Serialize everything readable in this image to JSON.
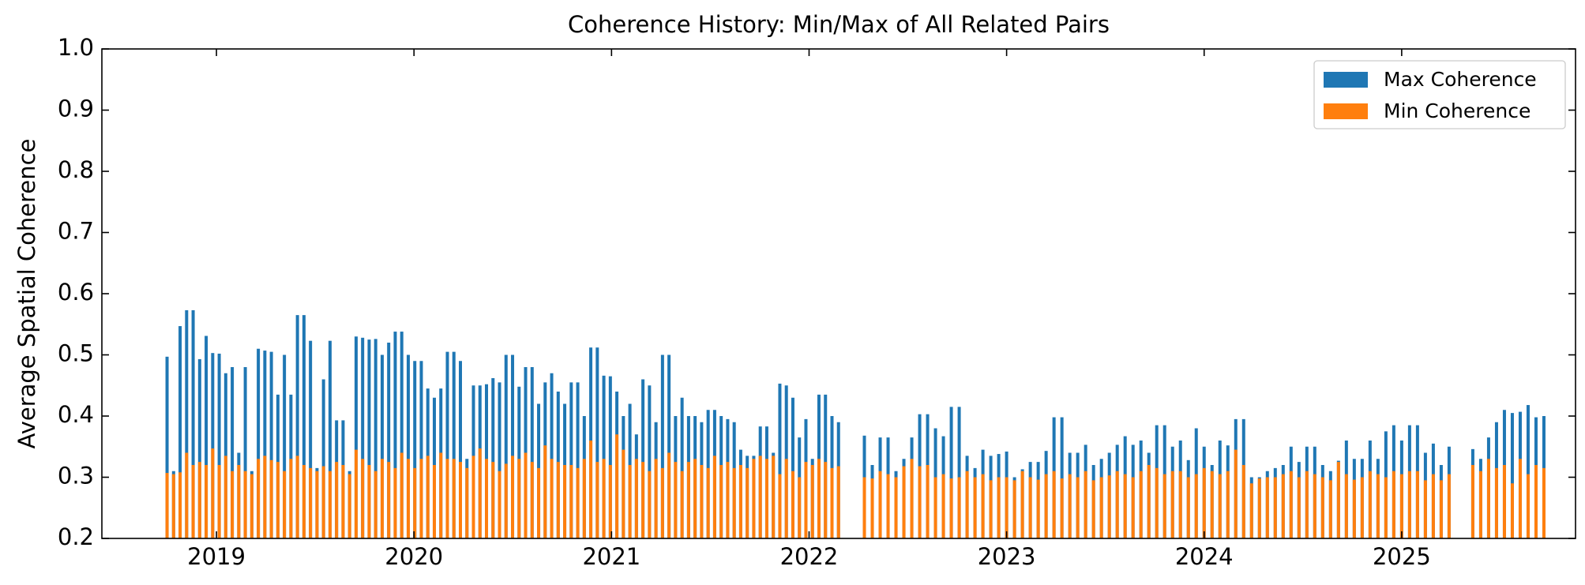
{
  "chart_data": {
    "type": "bar",
    "title": "Coherence History: Min/Max of All Related Pairs",
    "ylabel": "Average Spatial Coherence",
    "xlim": [
      2018.42,
      2025.88
    ],
    "xticks": [
      2019,
      2020,
      2021,
      2022,
      2023,
      2024,
      2025
    ],
    "ylim": [
      0.2,
      1.0
    ],
    "yticks": [
      0.2,
      0.3,
      0.4,
      0.5,
      0.6,
      0.7,
      0.8,
      0.9,
      {
        "value": 1,
        "label": "1.0"
      }
    ],
    "legend": "upper right",
    "x": [
      2018.75,
      2018.783,
      2018.816,
      2018.849,
      2018.882,
      2018.915,
      2018.948,
      2018.981,
      2019.014,
      2019.047,
      2019.08,
      2019.113,
      2019.146,
      2019.179,
      2019.212,
      2019.245,
      2019.278,
      2019.311,
      2019.344,
      2019.377,
      2019.41,
      2019.443,
      2019.476,
      2019.509,
      2019.542,
      2019.575,
      2019.608,
      2019.641,
      2019.674,
      2019.707,
      2019.74,
      2019.773,
      2019.806,
      2019.839,
      2019.872,
      2019.905,
      2019.938,
      2019.971,
      2020.004,
      2020.037,
      2020.07,
      2020.103,
      2020.136,
      2020.169,
      2020.202,
      2020.235,
      2020.268,
      2020.301,
      2020.334,
      2020.367,
      2020.4,
      2020.433,
      2020.466,
      2020.499,
      2020.532,
      2020.565,
      2020.598,
      2020.631,
      2020.664,
      2020.697,
      2020.73,
      2020.763,
      2020.796,
      2020.829,
      2020.862,
      2020.895,
      2020.928,
      2020.961,
      2020.994,
      2021.027,
      2021.06,
      2021.093,
      2021.126,
      2021.159,
      2021.192,
      2021.225,
      2021.258,
      2021.291,
      2021.324,
      2021.357,
      2021.39,
      2021.423,
      2021.456,
      2021.489,
      2021.522,
      2021.555,
      2021.588,
      2021.621,
      2021.654,
      2021.687,
      2021.72,
      2021.753,
      2021.786,
      2021.819,
      2021.852,
      2021.885,
      2021.918,
      2021.951,
      2021.984,
      2022.017,
      2022.05,
      2022.083,
      2022.116,
      2022.149,
      2022.28,
      2022.32,
      2022.36,
      2022.4,
      2022.44,
      2022.48,
      2022.52,
      2022.56,
      2022.6,
      2022.64,
      2022.68,
      2022.72,
      2022.76,
      2022.8,
      2022.84,
      2022.88,
      2022.92,
      2022.96,
      2023.0,
      2023.04,
      2023.08,
      2023.12,
      2023.16,
      2023.2,
      2023.24,
      2023.28,
      2023.32,
      2023.36,
      2023.4,
      2023.44,
      2023.48,
      2023.52,
      2023.56,
      2023.6,
      2023.64,
      2023.68,
      2023.72,
      2023.76,
      2023.8,
      2023.84,
      2023.88,
      2023.92,
      2023.96,
      2024.0,
      2024.04,
      2024.08,
      2024.12,
      2024.16,
      2024.2,
      2024.24,
      2024.28,
      2024.32,
      2024.36,
      2024.4,
      2024.44,
      2024.48,
      2024.52,
      2024.56,
      2024.6,
      2024.64,
      2024.68,
      2024.72,
      2024.76,
      2024.8,
      2024.84,
      2024.88,
      2024.92,
      2024.96,
      2025.0,
      2025.04,
      2025.08,
      2025.12,
      2025.16,
      2025.2,
      2025.24,
      2025.36,
      2025.4,
      2025.44,
      2025.48,
      2025.52,
      2025.56,
      2025.6,
      2025.64,
      2025.68,
      2025.72
    ],
    "series": [
      {
        "name": "Max Coherence",
        "color": "#1f77b4",
        "values": [
          0.497,
          0.31,
          0.547,
          0.573,
          0.573,
          0.493,
          0.531,
          0.503,
          0.502,
          0.47,
          0.48,
          0.34,
          0.48,
          0.31,
          0.51,
          0.507,
          0.505,
          0.435,
          0.5,
          0.435,
          0.565,
          0.565,
          0.523,
          0.315,
          0.46,
          0.523,
          0.393,
          0.393,
          0.31,
          0.53,
          0.528,
          0.525,
          0.526,
          0.5,
          0.52,
          0.538,
          0.538,
          0.5,
          0.49,
          0.49,
          0.445,
          0.43,
          0.445,
          0.505,
          0.505,
          0.49,
          0.33,
          0.45,
          0.45,
          0.452,
          0.462,
          0.455,
          0.5,
          0.5,
          0.448,
          0.48,
          0.48,
          0.42,
          0.455,
          0.47,
          0.44,
          0.42,
          0.455,
          0.455,
          0.4,
          0.512,
          0.512,
          0.466,
          0.465,
          0.44,
          0.4,
          0.42,
          0.37,
          0.46,
          0.45,
          0.39,
          0.5,
          0.5,
          0.4,
          0.43,
          0.4,
          0.4,
          0.39,
          0.41,
          0.41,
          0.4,
          0.395,
          0.39,
          0.345,
          0.335,
          0.335,
          0.383,
          0.383,
          0.34,
          0.453,
          0.45,
          0.43,
          0.365,
          0.395,
          0.33,
          0.435,
          0.435,
          0.4,
          0.39,
          0.368,
          0.32,
          0.365,
          0.365,
          0.31,
          0.33,
          0.365,
          0.403,
          0.403,
          0.38,
          0.367,
          0.415,
          0.415,
          0.335,
          0.315,
          0.345,
          0.335,
          0.338,
          0.342,
          0.3,
          0.313,
          0.325,
          0.325,
          0.343,
          0.398,
          0.398,
          0.34,
          0.34,
          0.353,
          0.32,
          0.33,
          0.34,
          0.353,
          0.367,
          0.353,
          0.36,
          0.34,
          0.385,
          0.385,
          0.35,
          0.36,
          0.328,
          0.38,
          0.35,
          0.32,
          0.36,
          0.352,
          0.395,
          0.395,
          0.3,
          0.3,
          0.31,
          0.315,
          0.32,
          0.35,
          0.325,
          0.35,
          0.35,
          0.32,
          0.31,
          0.327,
          0.36,
          0.33,
          0.33,
          0.36,
          0.33,
          0.375,
          0.385,
          0.36,
          0.385,
          0.385,
          0.34,
          0.355,
          0.32,
          0.35,
          0.346,
          0.33,
          0.365,
          0.39,
          0.41,
          0.405,
          0.407,
          0.418,
          0.398,
          0.4
        ]
      },
      {
        "name": "Min Coherence",
        "color": "#ff7f0e",
        "values": [
          0.307,
          0.305,
          0.308,
          0.34,
          0.32,
          0.325,
          0.32,
          0.347,
          0.32,
          0.335,
          0.31,
          0.32,
          0.31,
          0.305,
          0.33,
          0.335,
          0.328,
          0.325,
          0.31,
          0.33,
          0.335,
          0.32,
          0.315,
          0.31,
          0.318,
          0.31,
          0.325,
          0.32,
          0.305,
          0.345,
          0.33,
          0.32,
          0.31,
          0.33,
          0.325,
          0.315,
          0.34,
          0.33,
          0.315,
          0.33,
          0.335,
          0.32,
          0.34,
          0.33,
          0.33,
          0.325,
          0.315,
          0.335,
          0.347,
          0.33,
          0.325,
          0.31,
          0.322,
          0.335,
          0.33,
          0.34,
          0.325,
          0.315,
          0.352,
          0.33,
          0.325,
          0.32,
          0.32,
          0.315,
          0.33,
          0.36,
          0.325,
          0.33,
          0.32,
          0.37,
          0.345,
          0.32,
          0.33,
          0.325,
          0.31,
          0.33,
          0.315,
          0.34,
          0.325,
          0.31,
          0.325,
          0.33,
          0.32,
          0.315,
          0.335,
          0.32,
          0.325,
          0.315,
          0.32,
          0.315,
          0.33,
          0.335,
          0.33,
          0.335,
          0.305,
          0.33,
          0.31,
          0.3,
          0.325,
          0.32,
          0.33,
          0.325,
          0.315,
          0.318,
          0.3,
          0.298,
          0.31,
          0.305,
          0.3,
          0.318,
          0.33,
          0.318,
          0.32,
          0.3,
          0.305,
          0.298,
          0.3,
          0.31,
          0.3,
          0.305,
          0.295,
          0.3,
          0.3,
          0.295,
          0.31,
          0.3,
          0.296,
          0.305,
          0.31,
          0.298,
          0.305,
          0.3,
          0.31,
          0.295,
          0.3,
          0.303,
          0.31,
          0.305,
          0.3,
          0.31,
          0.32,
          0.315,
          0.305,
          0.31,
          0.31,
          0.3,
          0.305,
          0.315,
          0.31,
          0.305,
          0.31,
          0.345,
          0.32,
          0.29,
          0.298,
          0.3,
          0.3,
          0.305,
          0.31,
          0.3,
          0.31,
          0.305,
          0.3,
          0.295,
          0.325,
          0.305,
          0.296,
          0.3,
          0.31,
          0.305,
          0.3,
          0.31,
          0.305,
          0.31,
          0.31,
          0.295,
          0.305,
          0.295,
          0.305,
          0.32,
          0.31,
          0.33,
          0.315,
          0.32,
          0.29,
          0.33,
          0.305,
          0.32,
          0.315
        ]
      }
    ]
  }
}
